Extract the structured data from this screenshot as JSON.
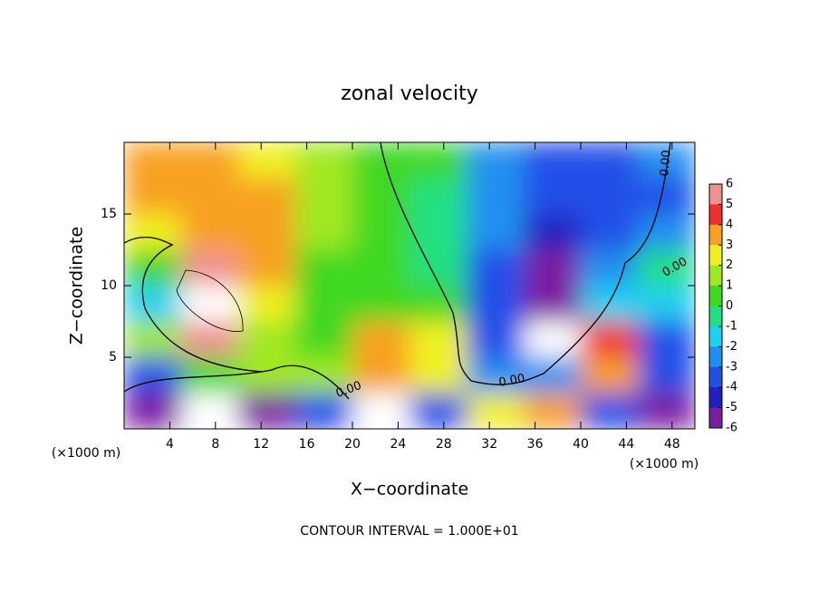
{
  "chart_data": {
    "type": "heatmap",
    "title": "zonal velocity",
    "xlabel": "X−coordinate",
    "ylabel": "Z−coordinate",
    "x_unit_left": "(×1000 m)",
    "x_unit_right": "(×1000 m)",
    "footer": "CONTOUR INTERVAL = 1.000E+01",
    "contour_labels": [
      "0.00",
      "0.00",
      "0.00",
      "0.00"
    ],
    "xlim": [
      0,
      50
    ],
    "ylim": [
      0,
      20
    ],
    "xticks": [
      4,
      8,
      12,
      16,
      20,
      24,
      28,
      32,
      36,
      40,
      44,
      48
    ],
    "yticks": [
      5,
      10,
      15
    ],
    "x": [
      2.5,
      7.5,
      12.5,
      17.5,
      22.5,
      27.5,
      32.5,
      37.5,
      42.5,
      47.5
    ],
    "y": [
      18.75,
      16.25,
      13.75,
      11.25,
      8.75,
      6.25,
      3.75,
      1.25
    ],
    "z": [
      [
        4,
        4,
        3,
        2,
        1,
        0.5,
        -2,
        -3,
        -3,
        -2
      ],
      [
        4,
        4,
        4,
        2,
        1,
        0,
        -2,
        -3,
        -3,
        -3
      ],
      [
        3,
        4,
        4,
        2,
        1,
        0,
        -2,
        -4,
        -3,
        -2
      ],
      [
        1,
        6,
        4,
        1,
        1,
        0,
        -3,
        -5,
        -2,
        0
      ],
      [
        -1,
        7,
        3,
        1,
        1,
        1,
        -3,
        -6,
        -1,
        -1
      ],
      [
        2,
        6,
        2,
        1,
        4,
        3,
        -3,
        -7,
        5,
        -3
      ],
      [
        -3,
        1,
        2,
        2,
        4,
        3,
        -2,
        -2,
        4,
        -3
      ],
      [
        -6,
        -7,
        -5,
        -3,
        -7,
        -3,
        3,
        4,
        -3,
        -5
      ]
    ],
    "colorbar_ticks": [
      6,
      5,
      4,
      3,
      2,
      1,
      0,
      -1,
      -2,
      -3,
      -4,
      -5,
      -6
    ],
    "colorbar_colors": [
      "#f09090",
      "#f03030",
      "#f8a020",
      "#f0f020",
      "#a0e820",
      "#40d820",
      "#20e080",
      "#20d0f0",
      "#2090f0",
      "#2050e8",
      "#2020c0",
      "#7b1fa2"
    ],
    "out_of_range_color": "#ffffff"
  }
}
